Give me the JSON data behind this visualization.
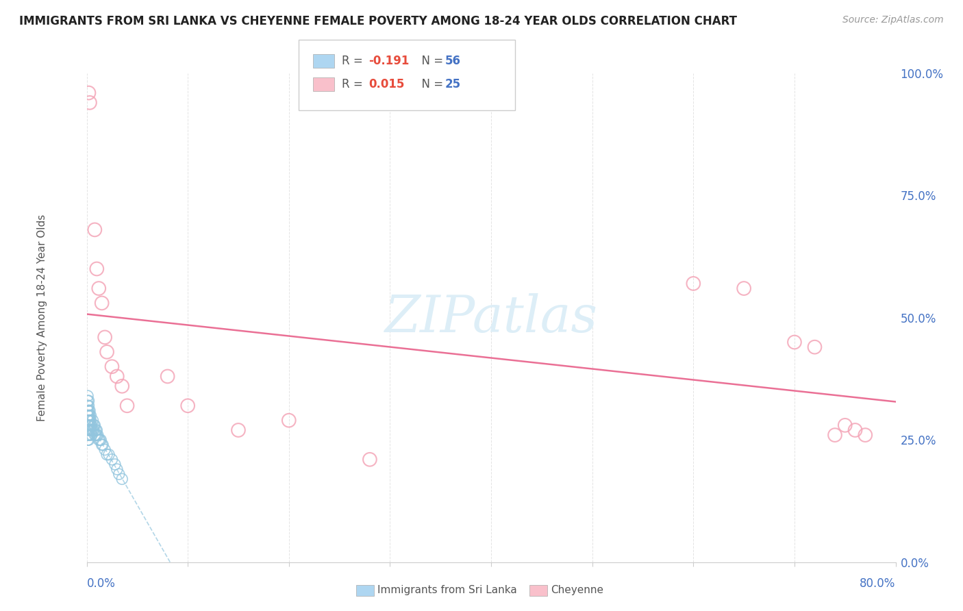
{
  "title": "IMMIGRANTS FROM SRI LANKA VS CHEYENNE FEMALE POVERTY AMONG 18-24 YEAR OLDS CORRELATION CHART",
  "source": "Source: ZipAtlas.com",
  "ylabel": "Female Poverty Among 18-24 Year Olds",
  "ytick_labels": [
    "0.0%",
    "25.0%",
    "50.0%",
    "75.0%",
    "100.0%"
  ],
  "ytick_values": [
    0.0,
    0.25,
    0.5,
    0.75,
    1.0
  ],
  "xlim": [
    0.0,
    0.8
  ],
  "ylim": [
    0.0,
    1.0
  ],
  "blue_color": "#92c5de",
  "pink_color": "#f4a6b8",
  "pink_line_color": "#e8608a",
  "blue_line_color": "#92c5de",
  "watermark_color": "#d8e8f0",
  "blue_scatter_x": [
    0.001,
    0.001,
    0.001,
    0.001,
    0.001,
    0.001,
    0.001,
    0.001,
    0.001,
    0.001,
    0.002,
    0.002,
    0.002,
    0.002,
    0.002,
    0.002,
    0.002,
    0.002,
    0.002,
    0.003,
    0.003,
    0.003,
    0.003,
    0.003,
    0.003,
    0.004,
    0.004,
    0.004,
    0.004,
    0.005,
    0.005,
    0.005,
    0.006,
    0.006,
    0.007,
    0.007,
    0.008,
    0.008,
    0.009,
    0.009,
    0.01,
    0.01,
    0.011,
    0.012,
    0.013,
    0.014,
    0.015,
    0.016,
    0.018,
    0.02,
    0.022,
    0.025,
    0.028,
    0.03,
    0.032,
    0.035
  ],
  "blue_scatter_y": [
    0.27,
    0.28,
    0.29,
    0.3,
    0.31,
    0.32,
    0.33,
    0.25,
    0.26,
    0.34,
    0.27,
    0.28,
    0.29,
    0.3,
    0.31,
    0.32,
    0.26,
    0.33,
    0.25,
    0.27,
    0.28,
    0.29,
    0.3,
    0.26,
    0.31,
    0.27,
    0.28,
    0.29,
    0.3,
    0.27,
    0.28,
    0.26,
    0.27,
    0.29,
    0.27,
    0.28,
    0.26,
    0.28,
    0.27,
    0.26,
    0.26,
    0.27,
    0.26,
    0.25,
    0.25,
    0.25,
    0.24,
    0.24,
    0.23,
    0.22,
    0.22,
    0.21,
    0.2,
    0.19,
    0.18,
    0.17
  ],
  "pink_scatter_x": [
    0.002,
    0.003,
    0.008,
    0.01,
    0.012,
    0.015,
    0.018,
    0.02,
    0.025,
    0.03,
    0.035,
    0.04,
    0.08,
    0.1,
    0.15,
    0.2,
    0.28,
    0.6,
    0.65,
    0.7,
    0.72,
    0.74,
    0.75,
    0.76,
    0.77
  ],
  "pink_scatter_y": [
    0.96,
    0.94,
    0.68,
    0.6,
    0.56,
    0.53,
    0.46,
    0.43,
    0.4,
    0.38,
    0.36,
    0.32,
    0.38,
    0.32,
    0.27,
    0.29,
    0.21,
    0.57,
    0.56,
    0.45,
    0.44,
    0.26,
    0.28,
    0.27,
    0.26
  ]
}
